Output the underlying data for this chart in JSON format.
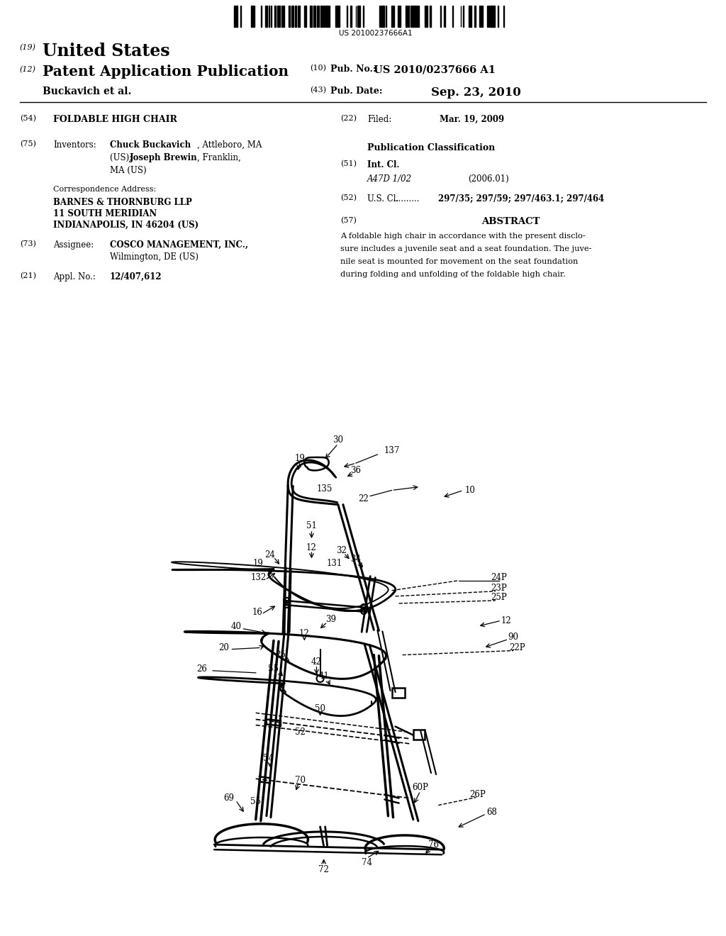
{
  "bg": "#ffffff",
  "barcode_text": "US 20100237666A1",
  "h19": "(19)",
  "h_us": "United States",
  "h12": "(12)",
  "h_pap": "Patent Application Publication",
  "h_inv": "Buckavich et al.",
  "h10": "(10)",
  "h_pnl": "Pub. No.:",
  "h_pnv": "US 2010/0237666 A1",
  "h43": "(43)",
  "h_pdl": "Pub. Date:",
  "h_pdv": "Sep. 23, 2010",
  "lc54": "(54)",
  "lc_title": "FOLDABLE HIGH CHAIR",
  "lc75": "(75)",
  "lc_inv_lbl": "Inventors:",
  "lc_inv1a": "Chuck Buckavich",
  "lc_inv1b": ", Attleboro, MA",
  "lc_inv2a": "(US); ",
  "lc_inv2b": "Joseph Brewin",
  "lc_inv2c": ", Franklin,",
  "lc_inv3": "MA (US)",
  "lc_corr": "Correspondence Address:",
  "lc_c1": "BARNES & THORNBURG LLP",
  "lc_c2": "11 SOUTH MERIDIAN",
  "lc_c3": "INDIANAPOLIS, IN 46204 (US)",
  "lc73": "(73)",
  "lc_asgn_lbl": "Assignee:",
  "lc_asgn1": "COSCO MANAGEMENT, INC.,",
  "lc_asgn2": "Wilmington, DE (US)",
  "lc21": "(21)",
  "lc_appl_lbl": "Appl. No.:",
  "lc_appl": "12/407,612",
  "rc22": "(22)",
  "rc_filed": "Filed:",
  "rc_filed_v": "Mar. 19, 2009",
  "rc_pubcls": "Publication Classification",
  "rc51": "(51)",
  "rc_intcl": "Int. Cl.",
  "rc_intcl_code": "A47D 1/02",
  "rc_intcl_yr": "(2006.01)",
  "rc52": "(52)",
  "rc_uscl": "U.S. Cl.",
  "rc_uscl_dots": "..........",
  "rc_uscl_v": "297/35; 297/59; 297/463.1; 297/464",
  "rc57": "(57)",
  "rc_abs_title": "ABSTRACT",
  "rc_abs1": "A foldable high chair in accordance with the present disclo-",
  "rc_abs2": "sure includes a juvenile seat and a seat foundation. The juve-",
  "rc_abs3": "nile seat is mounted for movement on the seat foundation",
  "rc_abs4": "during folding and unfolding of the foldable high chair."
}
